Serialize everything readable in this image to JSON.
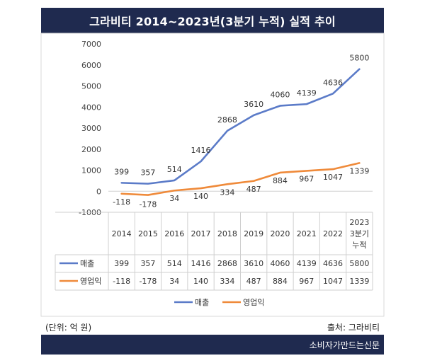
{
  "title": "그라비티 2014~2023년(3분기 누적) 실적 추이",
  "unit_note": "(단위: 억 원)",
  "source_note": "출처: 그라비티",
  "publisher": "소비자가만드는신문",
  "colors": {
    "header_bg": "#1f2a4f",
    "sales": "#5b7bc8",
    "profit": "#ef8a3a"
  },
  "chart_data": {
    "type": "line",
    "categories": [
      "2014",
      "2015",
      "2016",
      "2017",
      "2018",
      "2019",
      "2020",
      "2021",
      "2022",
      "2023\n3분기\n누적"
    ],
    "series": [
      {
        "name": "매출",
        "color": "#5b7bc8",
        "values": [
          399,
          357,
          514,
          1416,
          2868,
          3610,
          4060,
          4139,
          4636,
          5800
        ]
      },
      {
        "name": "영업익",
        "color": "#ef8a3a",
        "values": [
          -118,
          -178,
          34,
          140,
          334,
          487,
          884,
          967,
          1047,
          1339
        ]
      }
    ],
    "ylim": [
      -1000,
      7000
    ],
    "yticks": [
      "7000",
      "6000",
      "5000",
      "4000",
      "3000",
      "2000",
      "1000",
      "0",
      "-1000"
    ],
    "grid": false,
    "legend": "bottom",
    "data_table": true
  }
}
